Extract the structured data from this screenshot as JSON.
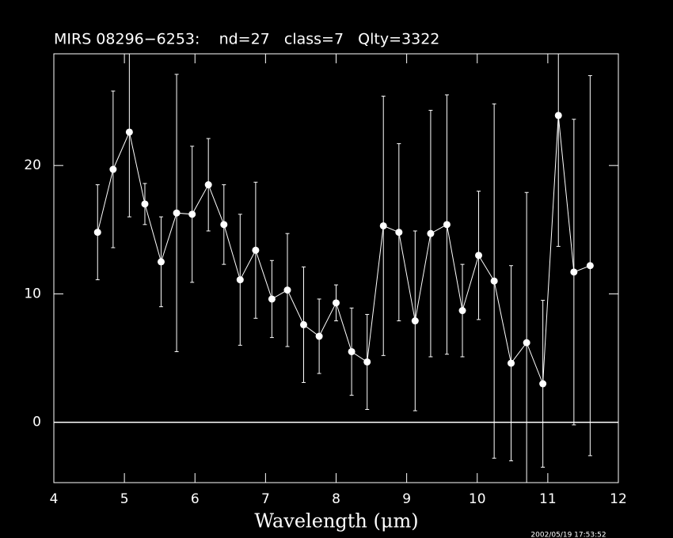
{
  "chart_data": {
    "type": "errorbar",
    "title": "MIRS 08296−6253:    nd=27   class=7   Qlty=3322",
    "x_label": "Wavelength (μm)",
    "timestamp": "2002/05/19 17:53:52",
    "color": "#ffffff",
    "x": [
      4.62,
      4.84,
      5.07,
      5.29,
      5.52,
      5.74,
      5.96,
      6.19,
      6.41,
      6.64,
      6.86,
      7.09,
      7.31,
      7.54,
      7.76,
      8.0,
      8.22,
      8.44,
      8.67,
      8.89,
      9.12,
      9.34,
      9.57,
      9.79,
      10.02,
      10.24,
      10.48,
      10.7,
      10.93,
      11.15,
      11.37,
      11.6
    ],
    "values": [
      14.8,
      19.7,
      22.6,
      17.0,
      12.5,
      16.3,
      16.2,
      18.5,
      15.4,
      11.1,
      13.4,
      9.6,
      10.3,
      7.6,
      6.7,
      9.3,
      5.5,
      4.7,
      15.3,
      14.8,
      7.9,
      14.7,
      15.4,
      8.7,
      13.0,
      11.0,
      4.6,
      6.2,
      3.0,
      23.9,
      11.7,
      12.2
    ],
    "errors": [
      3.7,
      6.1,
      6.6,
      1.6,
      3.5,
      10.8,
      5.3,
      3.6,
      3.1,
      5.1,
      5.3,
      3.0,
      4.4,
      4.5,
      2.9,
      1.4,
      3.4,
      3.7,
      10.1,
      6.9,
      7.0,
      9.6,
      10.1,
      3.6,
      5.0,
      13.8,
      7.6,
      11.7,
      6.5,
      10.2,
      11.9,
      14.8
    ],
    "xlim": [
      4,
      12
    ],
    "xticks": [
      4,
      5,
      6,
      7,
      8,
      9,
      10,
      11,
      12
    ],
    "ylim": [
      -4.7,
      28.7
    ],
    "yticks": [
      0,
      10,
      20
    ],
    "hline": 0
  }
}
